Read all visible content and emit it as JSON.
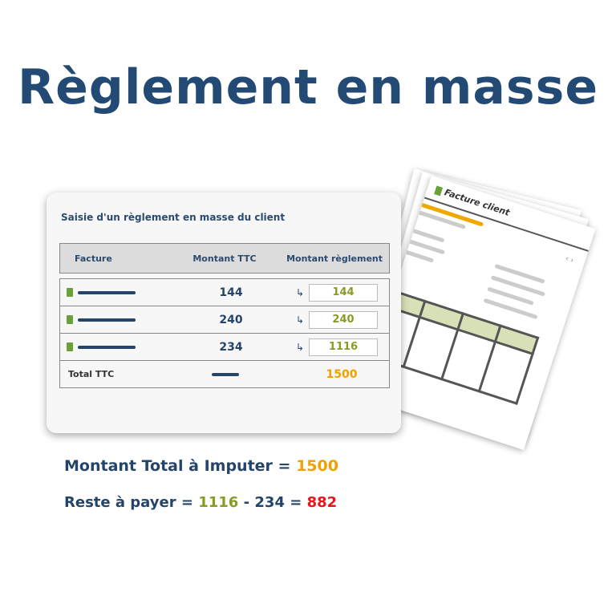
{
  "title": "Règlement en masse",
  "invoice_doc": {
    "title": "Facture client",
    "nav": "‹ ›"
  },
  "card": {
    "title": "Saisie d'un règlement en masse du client",
    "headers": [
      "Facture",
      "Montant TTC",
      "Montant règlement"
    ],
    "rows": [
      {
        "ttc": "144",
        "payment": "144"
      },
      {
        "ttc": "240",
        "payment": "240"
      },
      {
        "ttc": "234",
        "payment": "1116"
      }
    ],
    "total_label": "Total TTC",
    "total_value": "1500"
  },
  "summary": {
    "line1_label": "Montant Total à Imputer",
    "eq": "=",
    "line1_value": "1500",
    "line2_label": "Reste à payer",
    "a": "1116",
    "minus": "-",
    "b": "234",
    "result": "882"
  },
  "colors": {
    "title": "#234a75",
    "orange": "#f0a000",
    "olive": "#8a9a25",
    "red": "#e8141e"
  }
}
